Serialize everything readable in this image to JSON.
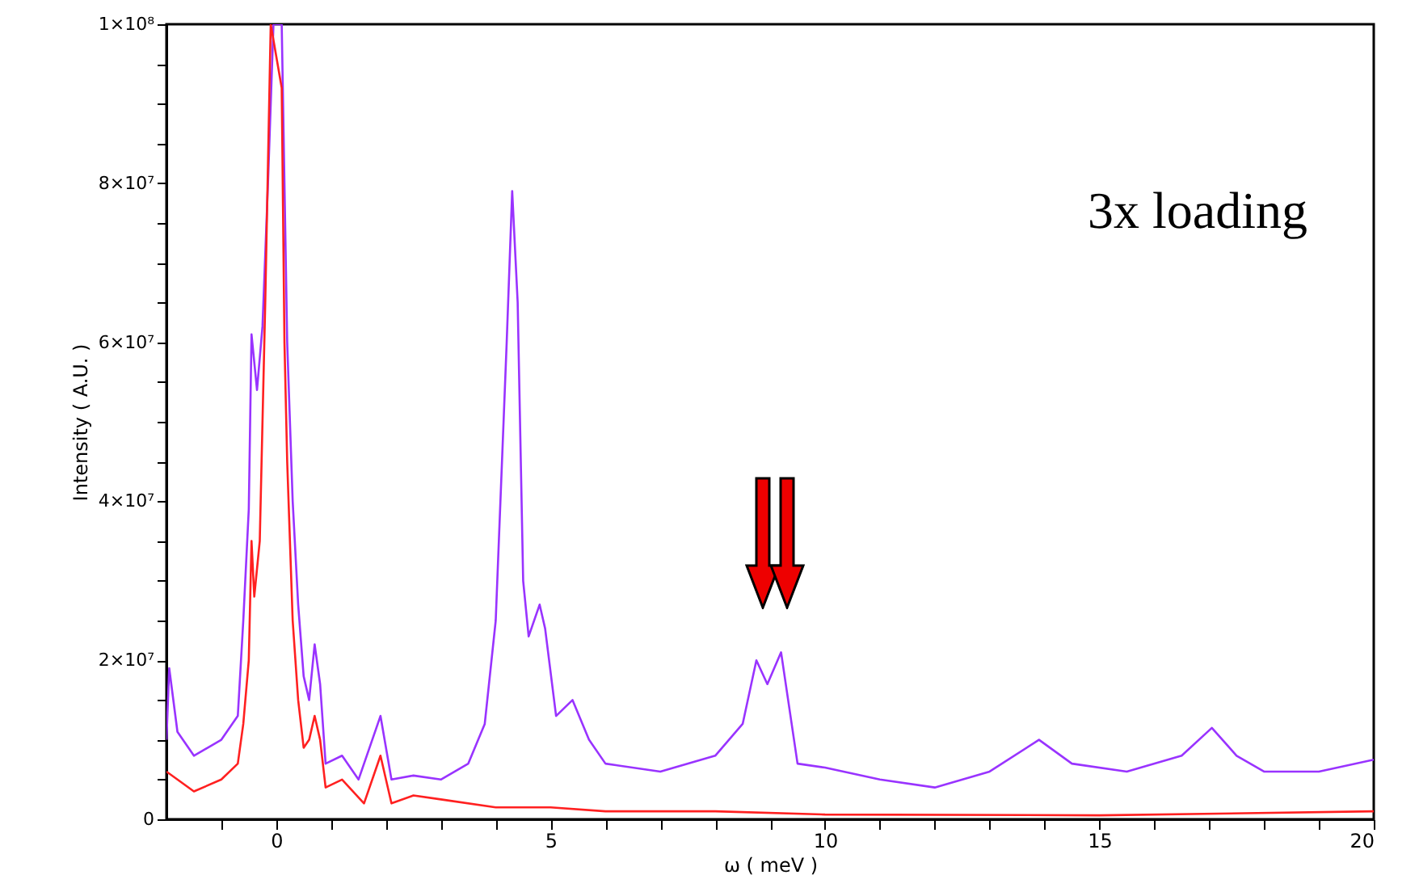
{
  "chart_data": {
    "type": "line",
    "xlabel": "ω ( meV )",
    "ylabel": "Intensity ( A.U. )",
    "annotations": [
      "3x loading"
    ],
    "xlim": [
      -2,
      20
    ],
    "xticks": [
      {
        "value": -1,
        "label": null
      },
      0,
      {
        "value": 1,
        "label": null
      },
      {
        "value": 2,
        "label": null
      },
      {
        "value": 3,
        "label": null
      },
      {
        "value": 4,
        "label": null
      },
      5,
      {
        "value": 6,
        "label": null
      },
      {
        "value": 7,
        "label": null
      },
      {
        "value": 8,
        "label": null
      },
      {
        "value": 9,
        "label": null
      },
      10,
      {
        "value": 11,
        "label": null
      },
      {
        "value": 12,
        "label": null
      },
      {
        "value": 13,
        "label": null
      },
      {
        "value": 14,
        "label": null
      },
      15,
      {
        "value": 16,
        "label": null
      },
      {
        "value": 17,
        "label": null
      },
      {
        "value": 18,
        "label": null
      },
      {
        "value": 19,
        "label": null
      },
      20
    ],
    "ylim": [
      0,
      100000000
    ],
    "yticks": [
      0,
      {
        "value": 5000000,
        "label": null
      },
      {
        "value": 10000000,
        "label": null
      },
      {
        "value": 15000000,
        "label": null
      },
      {
        "value": 20000000,
        "label": "2×10⁷"
      },
      {
        "value": 25000000,
        "label": null
      },
      {
        "value": 30000000,
        "label": null
      },
      {
        "value": 35000000,
        "label": null
      },
      {
        "value": 40000000,
        "label": "4×10⁷"
      },
      {
        "value": 45000000,
        "label": null
      },
      {
        "value": 50000000,
        "label": null
      },
      {
        "value": 55000000,
        "label": null
      },
      {
        "value": 60000000,
        "label": "6×10⁷"
      },
      {
        "value": 65000000,
        "label": null
      },
      {
        "value": 70000000,
        "label": null
      },
      {
        "value": 75000000,
        "label": null
      },
      {
        "value": 80000000,
        "label": "8×10⁷"
      },
      {
        "value": 85000000,
        "label": null
      },
      {
        "value": 90000000,
        "label": null
      },
      {
        "value": 95000000,
        "label": null
      },
      {
        "value": 100000000,
        "label": "1×10⁸"
      }
    ],
    "grid": false,
    "line_style": "solid",
    "marker": "none",
    "series": [
      {
        "color": "#9933ff",
        "x": [
          -2,
          -1.95,
          -1.8,
          -1.5,
          -1,
          -0.7,
          -0.6,
          -0.5,
          -0.45,
          -0.35,
          -0.25,
          -0.15,
          -0.05,
          0.1,
          0.2,
          0.3,
          0.4,
          0.5,
          0.6,
          0.7,
          0.8,
          0.9,
          1.2,
          1.5,
          1.9,
          2.1,
          2.5,
          3,
          3.5,
          3.8,
          4,
          4.2,
          4.3,
          4.4,
          4.5,
          4.6,
          4.8,
          4.9,
          5.1,
          5.4,
          5.7,
          6,
          7,
          8,
          8.5,
          8.75,
          8.95,
          9.2,
          9.5,
          10,
          11,
          12,
          13,
          13.9,
          14.5,
          15.5,
          16.5,
          17.05,
          17.5,
          18,
          19,
          20
        ],
        "values": [
          10000000,
          19000000,
          11000000,
          8000000,
          10000000,
          13000000,
          25000000,
          39000000,
          61000000,
          54000000,
          62000000,
          80000000,
          100000000,
          100000000,
          60000000,
          40000000,
          27000000,
          18000000,
          15000000,
          22000000,
          17000000,
          7000000,
          8000000,
          5000000,
          13000000,
          5000000,
          5500000,
          5000000,
          7000000,
          12000000,
          25000000,
          60000000,
          79000000,
          65000000,
          30000000,
          23000000,
          27000000,
          24000000,
          13000000,
          15000000,
          10000000,
          7000000,
          6000000,
          8000000,
          12000000,
          20000000,
          17000000,
          21000000,
          7000000,
          6500000,
          5000000,
          4000000,
          6000000,
          10000000,
          7000000,
          6000000,
          8000000,
          11500000,
          8000000,
          6000000,
          6000000,
          7500000
        ]
      },
      {
        "color": "#ff2020",
        "x": [
          -2,
          -1.8,
          -1.5,
          -1,
          -0.7,
          -0.6,
          -0.5,
          -0.45,
          -0.4,
          -0.3,
          -0.2,
          -0.1,
          0.1,
          0.15,
          0.2,
          0.3,
          0.4,
          0.5,
          0.6,
          0.7,
          0.8,
          0.9,
          1.2,
          1.6,
          1.9,
          2.1,
          2.5,
          3,
          4,
          5,
          6,
          8,
          10,
          15,
          20
        ],
        "values": [
          6000000,
          5000000,
          3500000,
          5000000,
          7000000,
          12000000,
          20000000,
          35000000,
          28000000,
          35000000,
          65000000,
          100000000,
          92000000,
          60000000,
          45000000,
          25000000,
          15000000,
          9000000,
          10000000,
          13000000,
          10000000,
          4000000,
          5000000,
          2000000,
          8000000,
          2000000,
          3000000,
          2500000,
          1500000,
          1500000,
          1000000,
          1000000,
          600000,
          500000,
          1000000
        ]
      }
    ]
  }
}
